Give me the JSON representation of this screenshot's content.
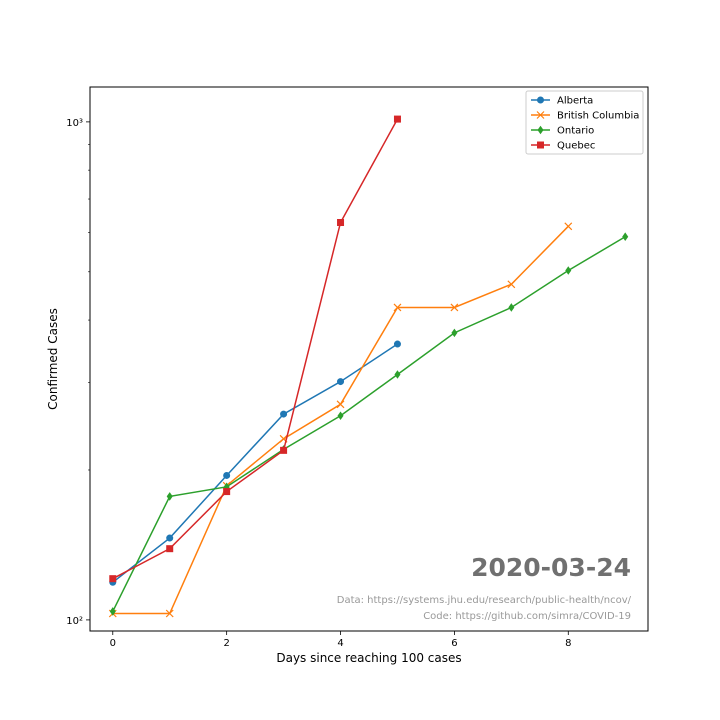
{
  "chart_data": {
    "type": "line",
    "xlabel": "Days since reaching 100 cases",
    "ylabel": "Confirmed Cases",
    "yscale": "log",
    "xlim": [
      -0.4,
      9.4
    ],
    "ylim": [
      95,
      1175
    ],
    "xticks": [
      0,
      2,
      4,
      6,
      8
    ],
    "xtick_labels": [
      "0",
      "2",
      "4",
      "6",
      "8"
    ],
    "yticks": [
      100,
      1000
    ],
    "ytick_labels": [
      "10²",
      "10³"
    ],
    "grid": false,
    "legend_position": "top-right",
    "series": [
      {
        "name": "Alberta",
        "color": "#1f77b4",
        "marker": "circle",
        "x": [
          0,
          1,
          2,
          3,
          4,
          5
        ],
        "y": [
          119,
          146,
          195,
          259,
          301,
          358
        ]
      },
      {
        "name": "British Columbia",
        "color": "#ff7f0e",
        "marker": "x",
        "x": [
          0,
          1,
          2,
          3,
          4,
          5,
          6,
          7,
          8
        ],
        "y": [
          103,
          103,
          186,
          231,
          271,
          424,
          424,
          472,
          617
        ]
      },
      {
        "name": "Ontario",
        "color": "#2ca02c",
        "marker": "diamond",
        "x": [
          0,
          1,
          2,
          3,
          4,
          5,
          6,
          7,
          8,
          9
        ],
        "y": [
          104,
          177,
          185,
          220,
          257,
          311,
          377,
          424,
          503,
          588
        ]
      },
      {
        "name": "Quebec",
        "color": "#d62728",
        "marker": "square",
        "x": [
          0,
          1,
          2,
          3,
          4,
          5
        ],
        "y": [
          121,
          139,
          181,
          219,
          628,
          1013
        ]
      }
    ]
  },
  "annotations": {
    "date": "2020-03-24",
    "data_source": "Data: https://systems.jhu.edu/research/public-health/ncov/",
    "code_source": "Code: https://github.com/simra/COVID-19"
  }
}
